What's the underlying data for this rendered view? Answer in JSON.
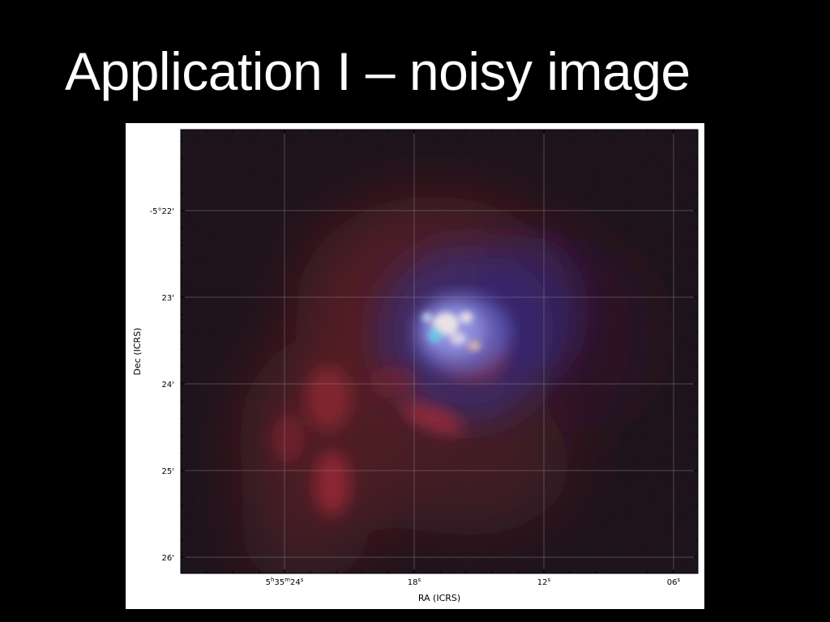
{
  "slide": {
    "title": "Application I – noisy image"
  },
  "figure": {
    "xlabel": "RA (ICRS)",
    "ylabel": "Dec (ICRS)",
    "x_ticks": [
      {
        "h": "5",
        "m": "35",
        "s": "24",
        "prefix": true
      },
      {
        "s": "18",
        "prefix": false
      },
      {
        "s": "12",
        "prefix": false
      },
      {
        "s": "06",
        "prefix": false
      }
    ],
    "y_ticks": [
      "-5°22'",
      "23'",
      "24'",
      "25'",
      "26'"
    ],
    "colors": {
      "background": "#000000",
      "panel": "#ffffff",
      "emission_red": "#b4232a",
      "emission_blue": "#4b5ad2",
      "core_white": "#ffffff",
      "core_cyan": "#64dcff"
    }
  }
}
